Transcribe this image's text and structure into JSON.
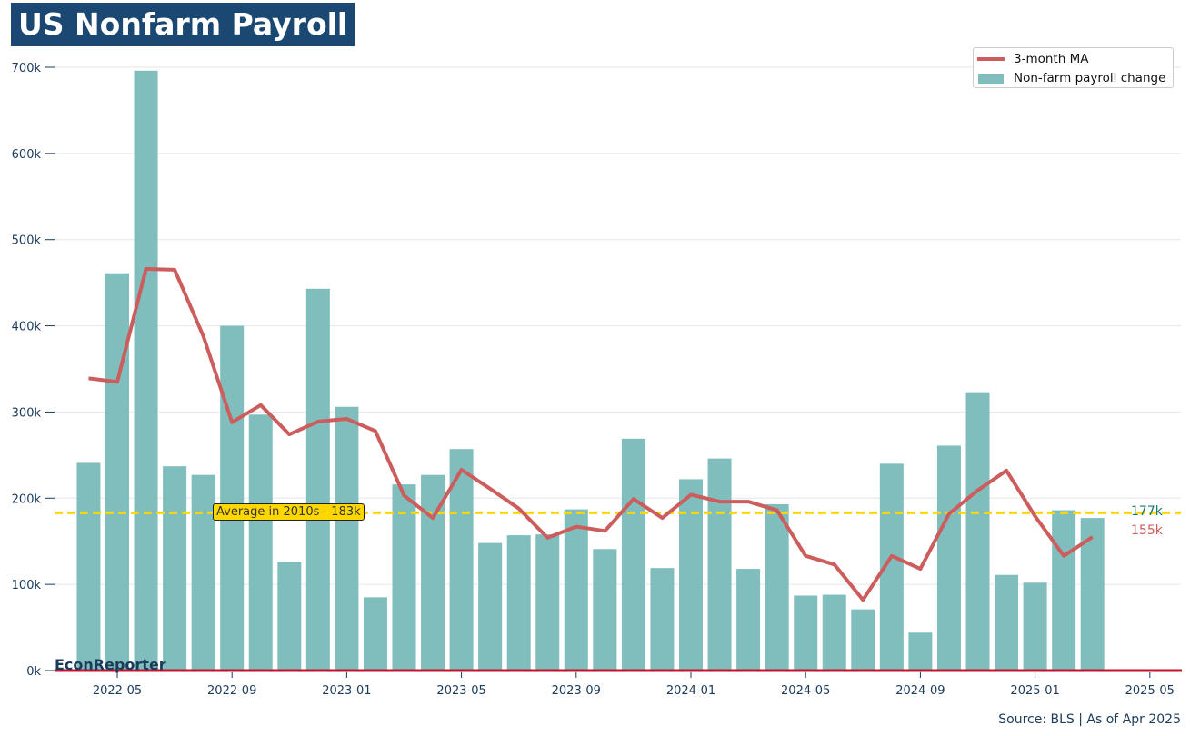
{
  "title": "US Nonfarm Payroll",
  "brand": "EconReporter",
  "source": "Source: BLS | As of Apr 2025",
  "colors": {
    "bar": "#80bebe",
    "ma": "#cd5c5c",
    "average": "#ffd700",
    "baseline": "#c8102e",
    "title_bg": "#1b4872",
    "axis_text": "#1b3b5a",
    "last_bar_label": "#1a7a6a"
  },
  "chart_data": {
    "type": "bar",
    "x": [
      "2022-04",
      "2022-05",
      "2022-06",
      "2022-07",
      "2022-08",
      "2022-09",
      "2022-10",
      "2022-11",
      "2022-12",
      "2023-01",
      "2023-02",
      "2023-03",
      "2023-04",
      "2023-05",
      "2023-06",
      "2023-07",
      "2023-08",
      "2023-09",
      "2023-10",
      "2023-11",
      "2023-12",
      "2024-01",
      "2024-02",
      "2024-03",
      "2024-04",
      "2024-05",
      "2024-06",
      "2024-07",
      "2024-08",
      "2024-09",
      "2024-10",
      "2024-11",
      "2024-12",
      "2025-01",
      "2025-02",
      "2025-03",
      "2025-04"
    ],
    "series": [
      {
        "name": "Non-farm payroll change",
        "type": "bar",
        "values": [
          241,
          461,
          696,
          237,
          227,
          400,
          297,
          126,
          443,
          306,
          85,
          216,
          227,
          257,
          148,
          157,
          158,
          187,
          141,
          269,
          119,
          222,
          246,
          118,
          193,
          87,
          88,
          71,
          240,
          44,
          261,
          323,
          111,
          102,
          186,
          177,
          null
        ]
      },
      {
        "name": "3-month MA",
        "type": "line",
        "values": [
          339,
          335,
          466,
          465,
          388,
          288,
          308,
          274,
          289,
          292,
          278,
          203,
          177,
          233,
          211,
          188,
          154,
          167,
          162,
          199,
          177,
          204,
          196,
          196,
          186,
          133,
          123,
          82,
          133,
          118,
          182,
          209,
          232,
          179,
          133,
          155,
          null
        ]
      }
    ],
    "xticks": [
      "2022-05",
      "2022-09",
      "2023-01",
      "2023-05",
      "2023-09",
      "2024-01",
      "2024-05",
      "2024-09",
      "2025-01",
      "2025-05"
    ],
    "yticks": [
      "0k",
      "100k",
      "200k",
      "300k",
      "400k",
      "500k",
      "600k",
      "700k"
    ],
    "ylim": [
      0,
      700
    ],
    "grid": true,
    "legend_position": "top-right",
    "reference_line": {
      "value": 183,
      "label": "Average in 2010s - 183k"
    },
    "end_labels": {
      "bar": "177k",
      "ma": "155k"
    }
  }
}
